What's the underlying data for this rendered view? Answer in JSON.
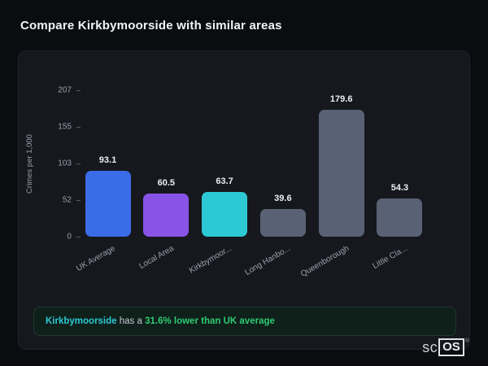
{
  "page": {
    "title": "Compare Kirkbymoorside with similar areas"
  },
  "chart_data": {
    "type": "bar",
    "title": "Compare Kirkbymoorside with similar areas",
    "ylabel": "Crimes per 1,000",
    "ylim": [
      0,
      207
    ],
    "yticks": [
      0,
      52,
      103,
      155,
      207
    ],
    "categories": [
      "UK Average",
      "Local Area",
      "Kirkbymoor...",
      "Long Hanbo...",
      "Queenborough",
      "Little Cla..."
    ],
    "values": [
      93.1,
      60.5,
      63.7,
      39.6,
      179.6,
      54.3
    ],
    "bar_colors": [
      "#3b6ce8",
      "#8a53e8",
      "#2cc9d4",
      "#596275",
      "#596275",
      "#596275"
    ],
    "grid": false,
    "legend": false
  },
  "footer_note": {
    "area_name": "Kirkbymoorside",
    "middle_text": " has a ",
    "highlight_text": "31.6% lower than UK average",
    "area_color": "#2cc9d4",
    "highlight_color": "#2ecc71"
  },
  "logo": {
    "prefix": "sc",
    "boxed": "OS",
    "registered": "®"
  }
}
